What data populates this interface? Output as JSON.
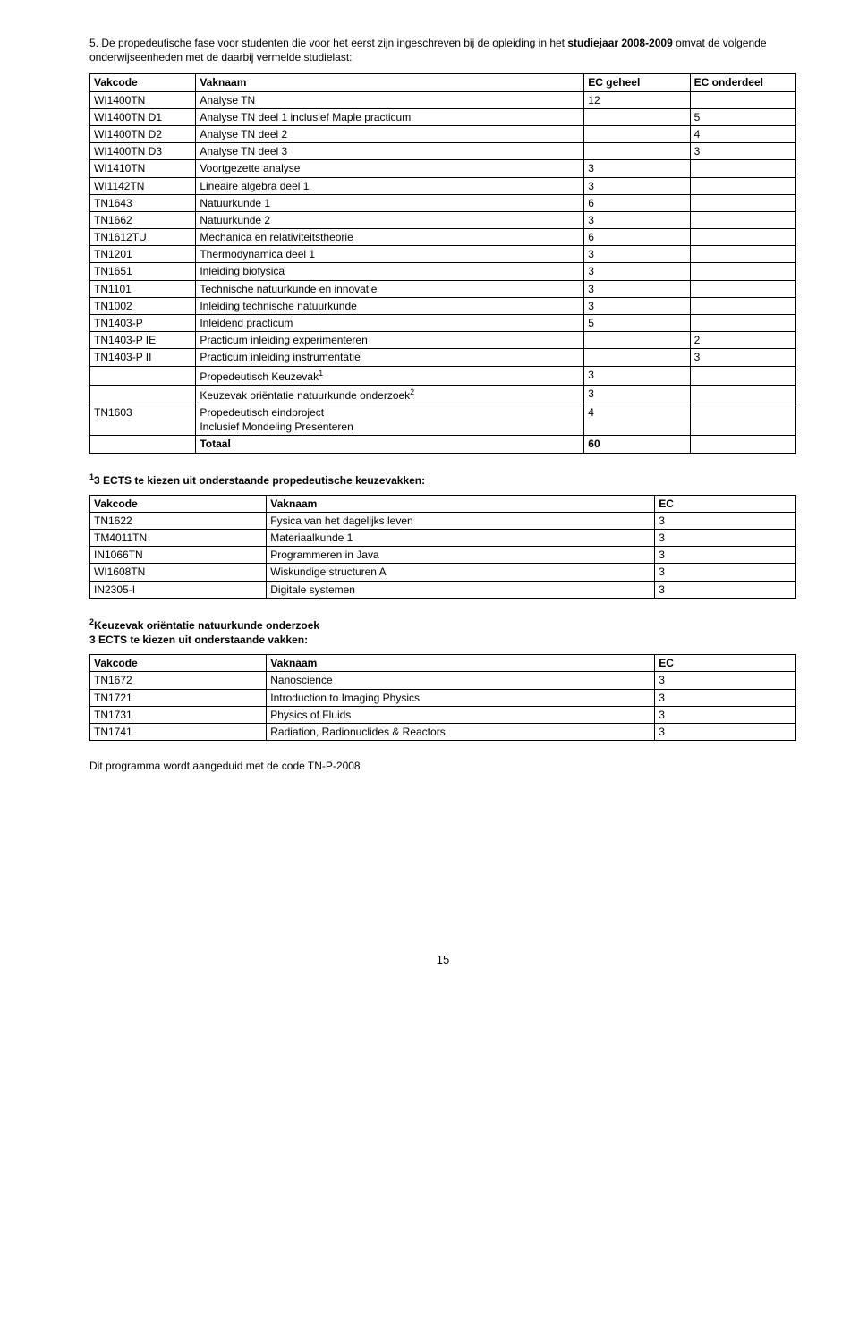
{
  "intro": {
    "prefix": "5. De propedeutische fase voor studenten die voor het eerst zijn ingeschreven bij de opleiding in het ",
    "bold": "studiejaar 2008-2009",
    "suffix": " omvat de volgende onderwijseenheden met de daarbij vermelde studielast:"
  },
  "tableMain": {
    "headers": [
      "Vakcode",
      "Vaknaam",
      "EC geheel",
      "EC onderdeel"
    ],
    "rows": [
      {
        "c": [
          "WI1400TN",
          "Analyse TN",
          "12",
          ""
        ],
        "bold": false
      },
      {
        "c": [
          "WI1400TN D1",
          "Analyse TN deel 1 inclusief Maple practicum",
          "",
          "5"
        ],
        "bold": false
      },
      {
        "c": [
          "WI1400TN D2",
          "Analyse TN deel 2",
          "",
          "4"
        ],
        "bold": false
      },
      {
        "c": [
          "WI1400TN D3",
          "Analyse TN deel 3",
          "",
          "3"
        ],
        "bold": false
      },
      {
        "c": [
          "WI1410TN",
          "Voortgezette analyse",
          "3",
          ""
        ],
        "bold": false
      },
      {
        "c": [
          "WI1142TN",
          "Lineaire algebra deel 1",
          "3",
          ""
        ],
        "bold": false
      },
      {
        "c": [
          "TN1643",
          "Natuurkunde 1",
          "6",
          ""
        ],
        "bold": false
      },
      {
        "c": [
          "TN1662",
          "Natuurkunde 2",
          "3",
          ""
        ],
        "bold": false
      },
      {
        "c": [
          "TN1612TU",
          "Mechanica en relativiteitstheorie",
          "6",
          ""
        ],
        "bold": false
      },
      {
        "c": [
          "TN1201",
          "Thermodynamica deel 1",
          "3",
          ""
        ],
        "bold": false
      },
      {
        "c": [
          "TN1651",
          "Inleiding biofysica",
          "3",
          ""
        ],
        "bold": false
      },
      {
        "c": [
          "TN1101",
          "Technische natuurkunde en innovatie",
          "3",
          ""
        ],
        "bold": false
      },
      {
        "c": [
          "TN1002",
          "Inleiding technische natuurkunde",
          "3",
          ""
        ],
        "bold": false
      },
      {
        "c": [
          "TN1403-P",
          "Inleidend practicum",
          "5",
          ""
        ],
        "bold": false
      },
      {
        "c": [
          "TN1403-P IE",
          "Practicum inleiding experimenteren",
          "",
          "2"
        ],
        "bold": false
      },
      {
        "c": [
          "TN1403-P II",
          "Practicum inleiding instrumentatie",
          "",
          "3"
        ],
        "bold": false
      },
      {
        "c": [
          "",
          "Propedeutisch Keuzevak",
          "3",
          ""
        ],
        "sup": "1",
        "bold": false
      },
      {
        "c": [
          "",
          "Keuzevak oriëntatie natuurkunde onderzoek",
          "3",
          ""
        ],
        "sup": "2",
        "bold": false
      },
      {
        "c": [
          "TN1603",
          "Propedeutisch eindproject\nInclusief Mondeling Presenteren",
          "4",
          ""
        ],
        "bold": false
      },
      {
        "c": [
          "",
          "Totaal",
          "60",
          ""
        ],
        "bold": true
      }
    ]
  },
  "subheader1": {
    "sup": "1",
    "text": "3 ECTS te kiezen uit onderstaande propedeutische keuzevakken:"
  },
  "table2": {
    "headers": [
      "Vakcode",
      "Vaknaam",
      "EC"
    ],
    "rows": [
      [
        "TN1622",
        "Fysica van het dagelijks leven",
        "3"
      ],
      [
        "TM4011TN",
        "Materiaalkunde 1",
        "3"
      ],
      [
        "IN1066TN",
        "Programmeren in Java",
        "3"
      ],
      [
        "WI1608TN",
        "Wiskundige structuren A",
        "3"
      ],
      [
        "IN2305-I",
        "Digitale systemen",
        "3"
      ]
    ]
  },
  "subheader2": {
    "sup": "2",
    "line1": "Keuzevak oriëntatie natuurkunde onderzoek",
    "line2": "3 ECTS te kiezen uit onderstaande vakken:"
  },
  "table3": {
    "headers": [
      "Vakcode",
      "Vaknaam",
      "EC"
    ],
    "rows": [
      [
        "TN1672",
        "Nanoscience",
        "3"
      ],
      [
        "TN1721",
        "Introduction to Imaging Physics",
        "3"
      ],
      [
        "TN1731",
        "Physics of Fluids",
        "3"
      ],
      [
        "TN1741",
        "Radiation, Radionuclides & Reactors",
        "3"
      ]
    ]
  },
  "codeLine": "Dit programma wordt aangeduid met de code TN-P-2008",
  "pageNumber": "15"
}
